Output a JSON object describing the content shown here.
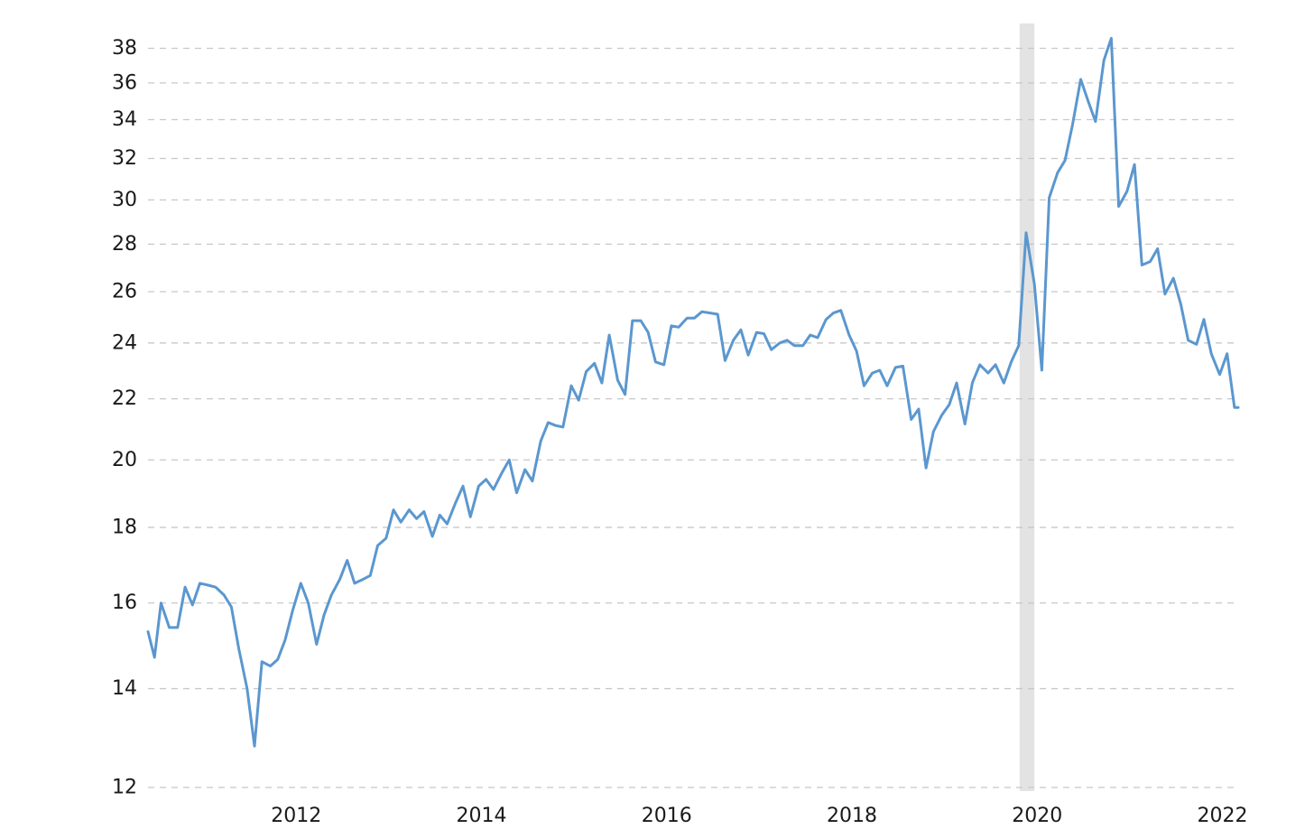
{
  "chart_data": {
    "type": "line",
    "title": "",
    "xlabel": "",
    "ylabel": "",
    "y_scale": "log",
    "ylim": [
      12,
      39.5
    ],
    "xlim": [
      2010.4,
      2022.17
    ],
    "grid": true,
    "legend": "none",
    "line_color": "#5b97cf",
    "recession_band_color": "#e3e3e3",
    "y_ticks": [
      12,
      14,
      16,
      18,
      20,
      22,
      24,
      26,
      28,
      30,
      32,
      34,
      36,
      38
    ],
    "y_tick_labels": [
      "12",
      "14",
      "16",
      "18",
      "20",
      "22",
      "24",
      "26",
      "28",
      "30",
      "32",
      "34",
      "36",
      "38"
    ],
    "x_ticks": [
      2012,
      2014,
      2016,
      2018,
      2020,
      2022
    ],
    "x_tick_labels": [
      "2012",
      "2014",
      "2016",
      "2018",
      "2020",
      "2022"
    ],
    "shaded_periods": [
      {
        "start": 2019.81,
        "end": 2019.97
      }
    ],
    "series": [
      {
        "x": [
          2010.4,
          2010.47,
          2010.54,
          2010.63,
          2010.72,
          2010.8,
          2010.88,
          2010.96,
          2011.05,
          2011.13,
          2011.22,
          2011.3,
          2011.38,
          2011.47,
          2011.55,
          2011.63,
          2011.72,
          2011.8,
          2011.88,
          2011.96,
          2012.05,
          2012.13,
          2012.22,
          2012.3,
          2012.38,
          2012.47,
          2012.55,
          2012.63,
          2012.72,
          2012.8,
          2012.88,
          2012.97,
          2013.05,
          2013.13,
          2013.22,
          2013.3,
          2013.38,
          2013.47,
          2013.55,
          2013.63,
          2013.72,
          2013.8,
          2013.88,
          2013.97,
          2014.05,
          2014.13,
          2014.22,
          2014.3,
          2014.38,
          2014.47,
          2014.55,
          2014.64,
          2014.72,
          2014.8,
          2014.88,
          2014.97,
          2015.05,
          2015.13,
          2015.22,
          2015.3,
          2015.38,
          2015.47,
          2015.55,
          2015.63,
          2015.72,
          2015.8,
          2015.88,
          2015.97,
          2016.05,
          2016.13,
          2016.22,
          2016.3,
          2016.38,
          2016.47,
          2016.55,
          2016.63,
          2016.72,
          2016.8,
          2016.88,
          2016.97,
          2017.05,
          2017.13,
          2017.22,
          2017.3,
          2017.38,
          2017.47,
          2017.55,
          2017.63,
          2017.72,
          2017.8,
          2017.88,
          2017.97,
          2018.05,
          2018.13,
          2018.22,
          2018.3,
          2018.38,
          2018.47,
          2018.55,
          2018.64,
          2018.72,
          2018.8,
          2018.88,
          2018.97,
          2019.05,
          2019.13,
          2019.22,
          2019.3,
          2019.38,
          2019.47,
          2019.55,
          2019.64,
          2019.72,
          2019.8,
          2019.88,
          2019.97,
          2020.05,
          2020.13,
          2020.22,
          2020.3,
          2020.38,
          2020.47,
          2020.55,
          2020.63,
          2020.72,
          2020.8,
          2020.88,
          2020.97,
          2021.05,
          2021.13,
          2021.22,
          2021.3,
          2021.38,
          2021.47,
          2021.55,
          2021.63,
          2021.72,
          2021.8,
          2021.88,
          2021.97,
          2022.05,
          2022.13,
          2022.17
        ],
        "values": [
          15.3,
          14.7,
          16.0,
          15.4,
          15.4,
          16.4,
          15.95,
          16.5,
          16.45,
          16.4,
          16.2,
          15.9,
          14.9,
          14.0,
          12.8,
          14.6,
          14.5,
          14.65,
          15.1,
          15.8,
          16.5,
          16.0,
          15.0,
          15.7,
          16.2,
          16.6,
          17.1,
          16.5,
          16.6,
          16.7,
          17.5,
          17.7,
          18.5,
          18.15,
          18.5,
          18.25,
          18.45,
          17.75,
          18.35,
          18.1,
          18.7,
          19.2,
          18.3,
          19.2,
          19.4,
          19.1,
          19.6,
          20.0,
          19.0,
          19.7,
          19.35,
          20.6,
          21.2,
          21.1,
          21.05,
          22.45,
          21.95,
          22.95,
          23.25,
          22.55,
          24.3,
          22.65,
          22.15,
          24.85,
          24.85,
          24.4,
          23.3,
          23.2,
          24.65,
          24.6,
          24.95,
          24.95,
          25.2,
          25.15,
          25.1,
          23.35,
          24.1,
          24.5,
          23.55,
          24.4,
          24.35,
          23.75,
          24.0,
          24.1,
          23.9,
          23.9,
          24.3,
          24.2,
          24.9,
          25.15,
          25.25,
          24.3,
          23.7,
          22.45,
          22.9,
          23.0,
          22.45,
          23.1,
          23.15,
          21.3,
          21.65,
          19.75,
          20.9,
          21.45,
          21.8,
          22.55,
          21.15,
          22.55,
          23.2,
          22.9,
          23.2,
          22.55,
          23.3,
          23.9,
          28.5,
          26.3,
          23.0,
          30.1,
          31.3,
          31.9,
          33.7,
          36.2,
          35.0,
          33.9,
          37.3,
          38.6,
          29.7,
          30.4,
          31.7,
          27.1,
          27.25,
          27.8,
          25.9,
          26.55,
          25.5,
          24.1,
          23.95,
          24.9,
          23.6,
          22.85,
          23.6,
          21.7,
          21.7
        ]
      }
    ]
  }
}
